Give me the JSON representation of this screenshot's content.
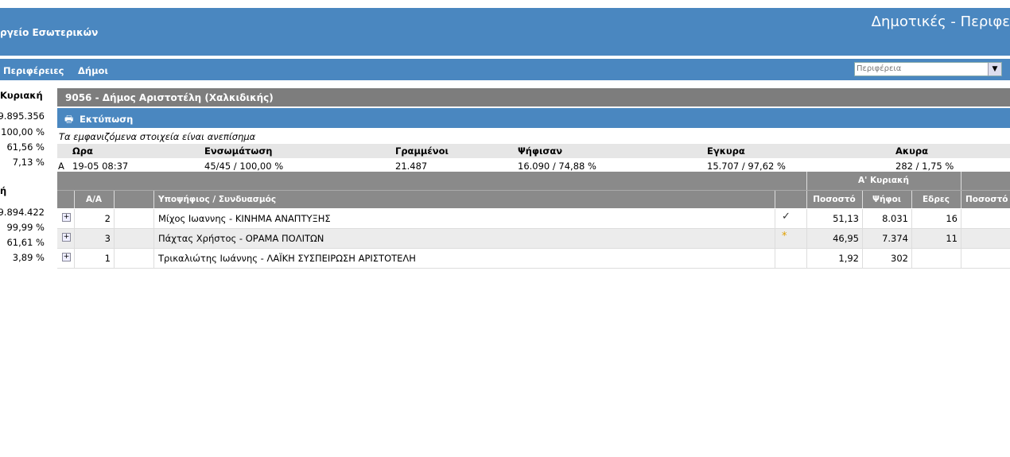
{
  "header": {
    "ministry": "ργείο Εσωτερικών",
    "title": "Δημοτικές - Περιφε"
  },
  "nav": {
    "links": [
      "Περιφέρειες",
      "Δήμοι"
    ],
    "select_placeholder": "Περιφέρεια"
  },
  "sidebar": {
    "groups": [
      {
        "title": "Κυριακή",
        "values": [
          "9.895.356",
          "100,00 %",
          "61,56 %",
          "7,13 %"
        ]
      },
      {
        "title": "ή",
        "values": [
          "9.894.422",
          "99,99 %",
          "61,61 %",
          "3,89 %"
        ]
      }
    ]
  },
  "section": {
    "title": "9056 - Δήμος Αριστοτέλη (Χαλκιδικής)",
    "print": "Εκτύπωση",
    "note": "Τα εμφανιζόμενα στοιχεία είναι ανεπίσημα"
  },
  "summary": {
    "columns": [
      "Ωρα",
      "Ενσωμάτωση",
      "Γραμμένοι",
      "Ψήφισαν",
      "Εγκυρα",
      "Ακυρα"
    ],
    "row": {
      "round": "A",
      "time": "19-05 08:37",
      "integration": "45/45 / 100,00 %",
      "registered": "21.487",
      "voted": "16.090 / 74,88 %",
      "valid": "15.707 / 97,62 %",
      "invalid": "282 / 1,75 %"
    }
  },
  "results": {
    "group": "Α' Κυριακή",
    "columns": [
      "Α/Α",
      "Υποψήφιος / Συνδυασμός",
      "Ποσοστό",
      "Ψήφοι",
      "Εδρες",
      "Ποσοστό"
    ],
    "rows": [
      {
        "aa": "2",
        "name": "Μίχος Ιωαννης - ΚΙΝΗΜΑ ΑΝΑΠΤΥΞΗΣ",
        "percent": "51,13",
        "votes": "8.031",
        "seats": "16"
      },
      {
        "aa": "3",
        "name": "Πάχτας Χρήστος - ΟΡΑΜΑ ΠΟΛΙΤΩΝ",
        "percent": "46,95",
        "votes": "7.374",
        "seats": "11"
      },
      {
        "aa": "1",
        "name": "Τρικαλιώτης Ιωάννης - ΛΑΪΚΗ ΣΥΣΠΕΙΡΩΣΗ ΑΡΙΣΤΟΤΕΛΗ",
        "percent": "1,92",
        "votes": "302"
      }
    ]
  }
}
